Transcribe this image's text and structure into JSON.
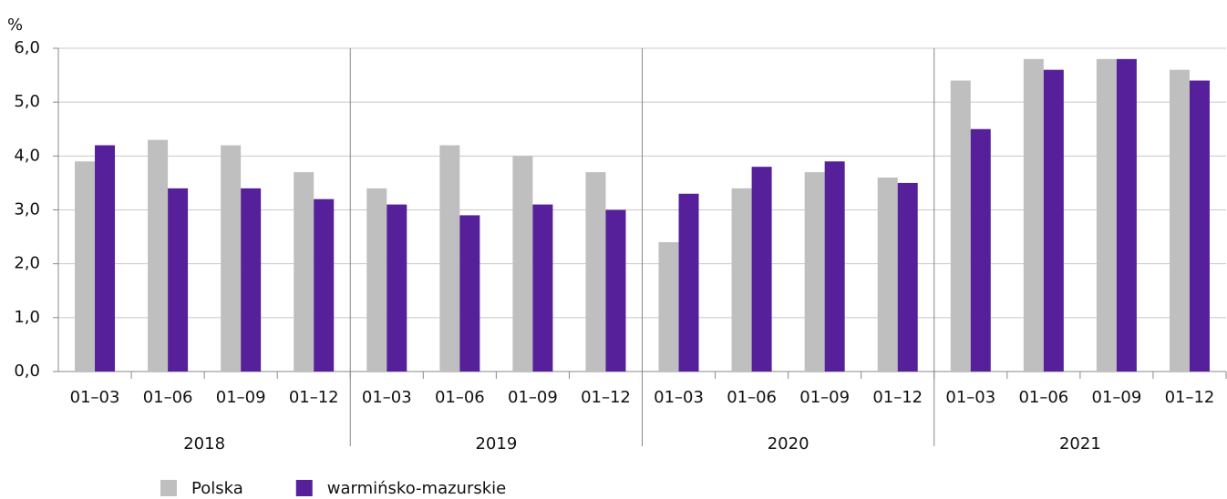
{
  "chart_data": {
    "type": "bar",
    "y_axis_label": "%",
    "categories": [
      "01–03",
      "01–06",
      "01–09",
      "01–12",
      "01–03",
      "01–06",
      "01–09",
      "01–12",
      "01–03",
      "01–06",
      "01–09",
      "01–12",
      "01–03",
      "01–06",
      "01–09",
      "01–12"
    ],
    "category_groups": [
      "2018",
      "2019",
      "2020",
      "2021"
    ],
    "series": [
      {
        "name": "Polska",
        "color": "#bfbfbf",
        "values": [
          3.9,
          4.3,
          4.2,
          3.7,
          3.4,
          4.2,
          4.0,
          3.7,
          2.4,
          3.4,
          3.7,
          3.6,
          5.4,
          5.8,
          5.8,
          5.6
        ]
      },
      {
        "name": "warmińsko-mazurskie",
        "color": "#55209a",
        "values": [
          4.2,
          3.4,
          3.4,
          3.2,
          3.1,
          2.9,
          3.1,
          3.0,
          3.3,
          3.8,
          3.9,
          3.5,
          4.5,
          5.6,
          5.8,
          5.4
        ]
      }
    ],
    "ylim": [
      0,
      6
    ],
    "yticks": [
      {
        "value": 0,
        "label": "0,0"
      },
      {
        "value": 1,
        "label": "1,0"
      },
      {
        "value": 2,
        "label": "2,0"
      },
      {
        "value": 3,
        "label": "3,0"
      },
      {
        "value": 4,
        "label": "4,0"
      },
      {
        "value": 5,
        "label": "5,0"
      },
      {
        "value": 6,
        "label": "6,0"
      }
    ],
    "grid": true
  }
}
